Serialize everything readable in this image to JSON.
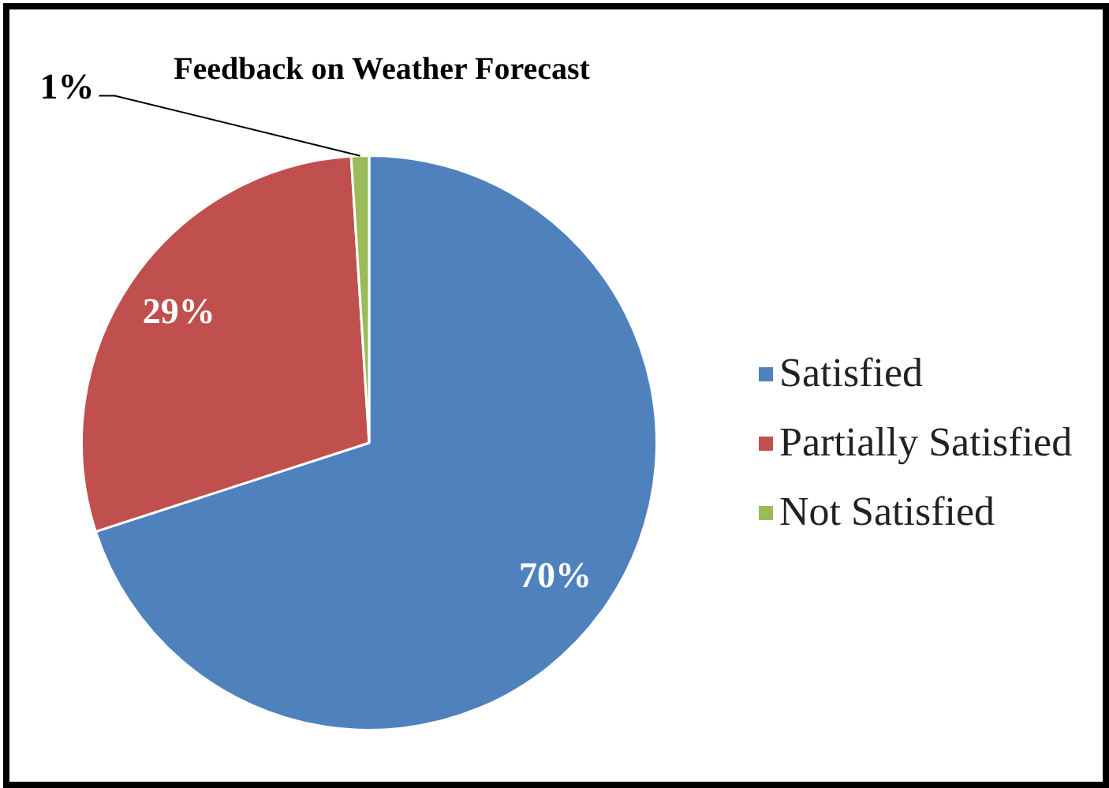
{
  "chart_data": {
    "type": "pie",
    "title": "Feedback on Weather Forecast",
    "categories": [
      "Satisfied",
      "Partially Satisfied",
      "Not Satisfied"
    ],
    "values": [
      70,
      29,
      1
    ],
    "colors": [
      "#4f81bd",
      "#c0504d",
      "#9bbb59"
    ],
    "value_labels": [
      "70%",
      "29%",
      "1%"
    ],
    "legend": "right"
  }
}
